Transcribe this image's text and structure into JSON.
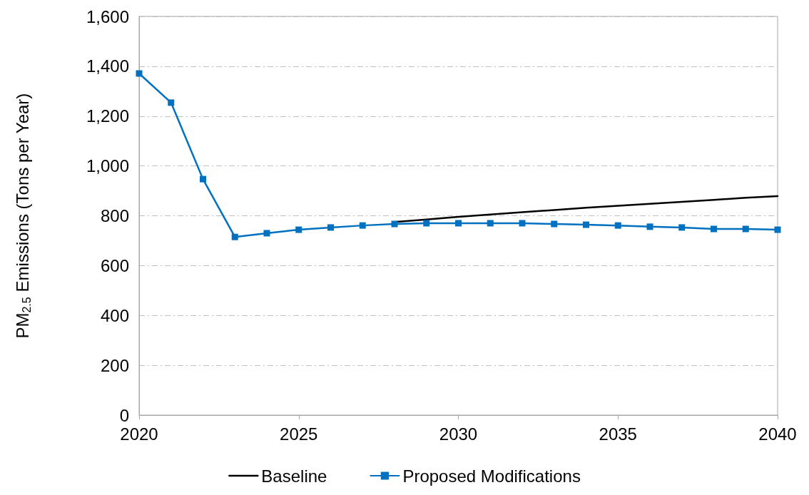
{
  "chart_data": {
    "type": "line",
    "ylabel": "PM$_{2.5}$ Emissions (Tons per Year)",
    "x": [
      2020,
      2021,
      2022,
      2023,
      2024,
      2025,
      2026,
      2027,
      2028,
      2029,
      2030,
      2031,
      2032,
      2033,
      2034,
      2035,
      2036,
      2037,
      2038,
      2039,
      2040
    ],
    "series": [
      {
        "name": "Baseline",
        "color": "#000000",
        "marker": "none",
        "values": [
          null,
          null,
          null,
          null,
          null,
          null,
          null,
          null,
          775,
          785,
          796,
          805,
          814,
          823,
          832,
          840,
          848,
          856,
          864,
          872,
          879
        ]
      },
      {
        "name": "Proposed Modifications",
        "color": "#0070c0",
        "marker": "square",
        "values": [
          1371,
          1254,
          947,
          715,
          730,
          744,
          753,
          761,
          767,
          770,
          770,
          770,
          770,
          767,
          764,
          761,
          756,
          753,
          747,
          747,
          744
        ]
      }
    ],
    "xlim": [
      2020,
      2040
    ],
    "xticks": [
      2020,
      2025,
      2030,
      2035,
      2040
    ],
    "ylim": [
      0,
      1600
    ],
    "yticks": [
      0,
      200,
      400,
      600,
      800,
      {
        "value": 1000,
        "label": "1,000"
      },
      {
        "value": 1200,
        "label": "1,200"
      },
      {
        "value": 1400,
        "label": "1,400"
      },
      {
        "value": 1600,
        "label": "1,600"
      }
    ],
    "grid": "y",
    "legend": "bottom",
    "line_style": "solid"
  }
}
